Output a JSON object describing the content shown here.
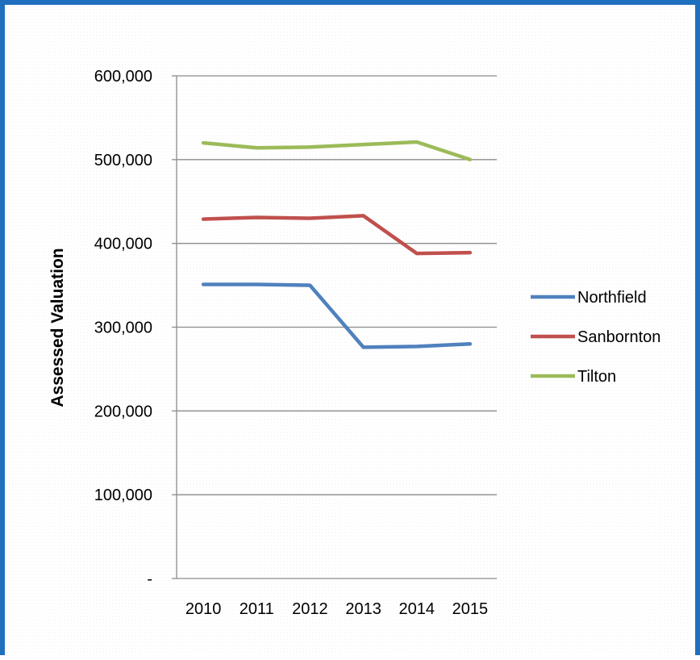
{
  "chart_data": {
    "type": "line",
    "title": "",
    "xlabel": "",
    "ylabel": "Assessed Valuation",
    "categories": [
      "2010",
      "2011",
      "2012",
      "2013",
      "2014",
      "2015"
    ],
    "ylim": [
      0,
      600000
    ],
    "yticks": [
      0,
      100000,
      200000,
      300000,
      400000,
      500000,
      600000
    ],
    "ytick_labels": [
      "-",
      "100,000",
      "200,000",
      "300,000",
      "400,000",
      "500,000",
      "600,000"
    ],
    "grid": true,
    "legend": "right",
    "series": [
      {
        "name": "Northfield",
        "color": "#4f81bd",
        "values": [
          351000,
          351000,
          350000,
          276000,
          277000,
          280000
        ]
      },
      {
        "name": "Sanbornton",
        "color": "#c0504d",
        "values": [
          429000,
          431000,
          430000,
          433000,
          388000,
          389000
        ]
      },
      {
        "name": "Tilton",
        "color": "#9bbb59",
        "values": [
          520000,
          514000,
          515000,
          518000,
          521000,
          500000
        ]
      }
    ]
  }
}
